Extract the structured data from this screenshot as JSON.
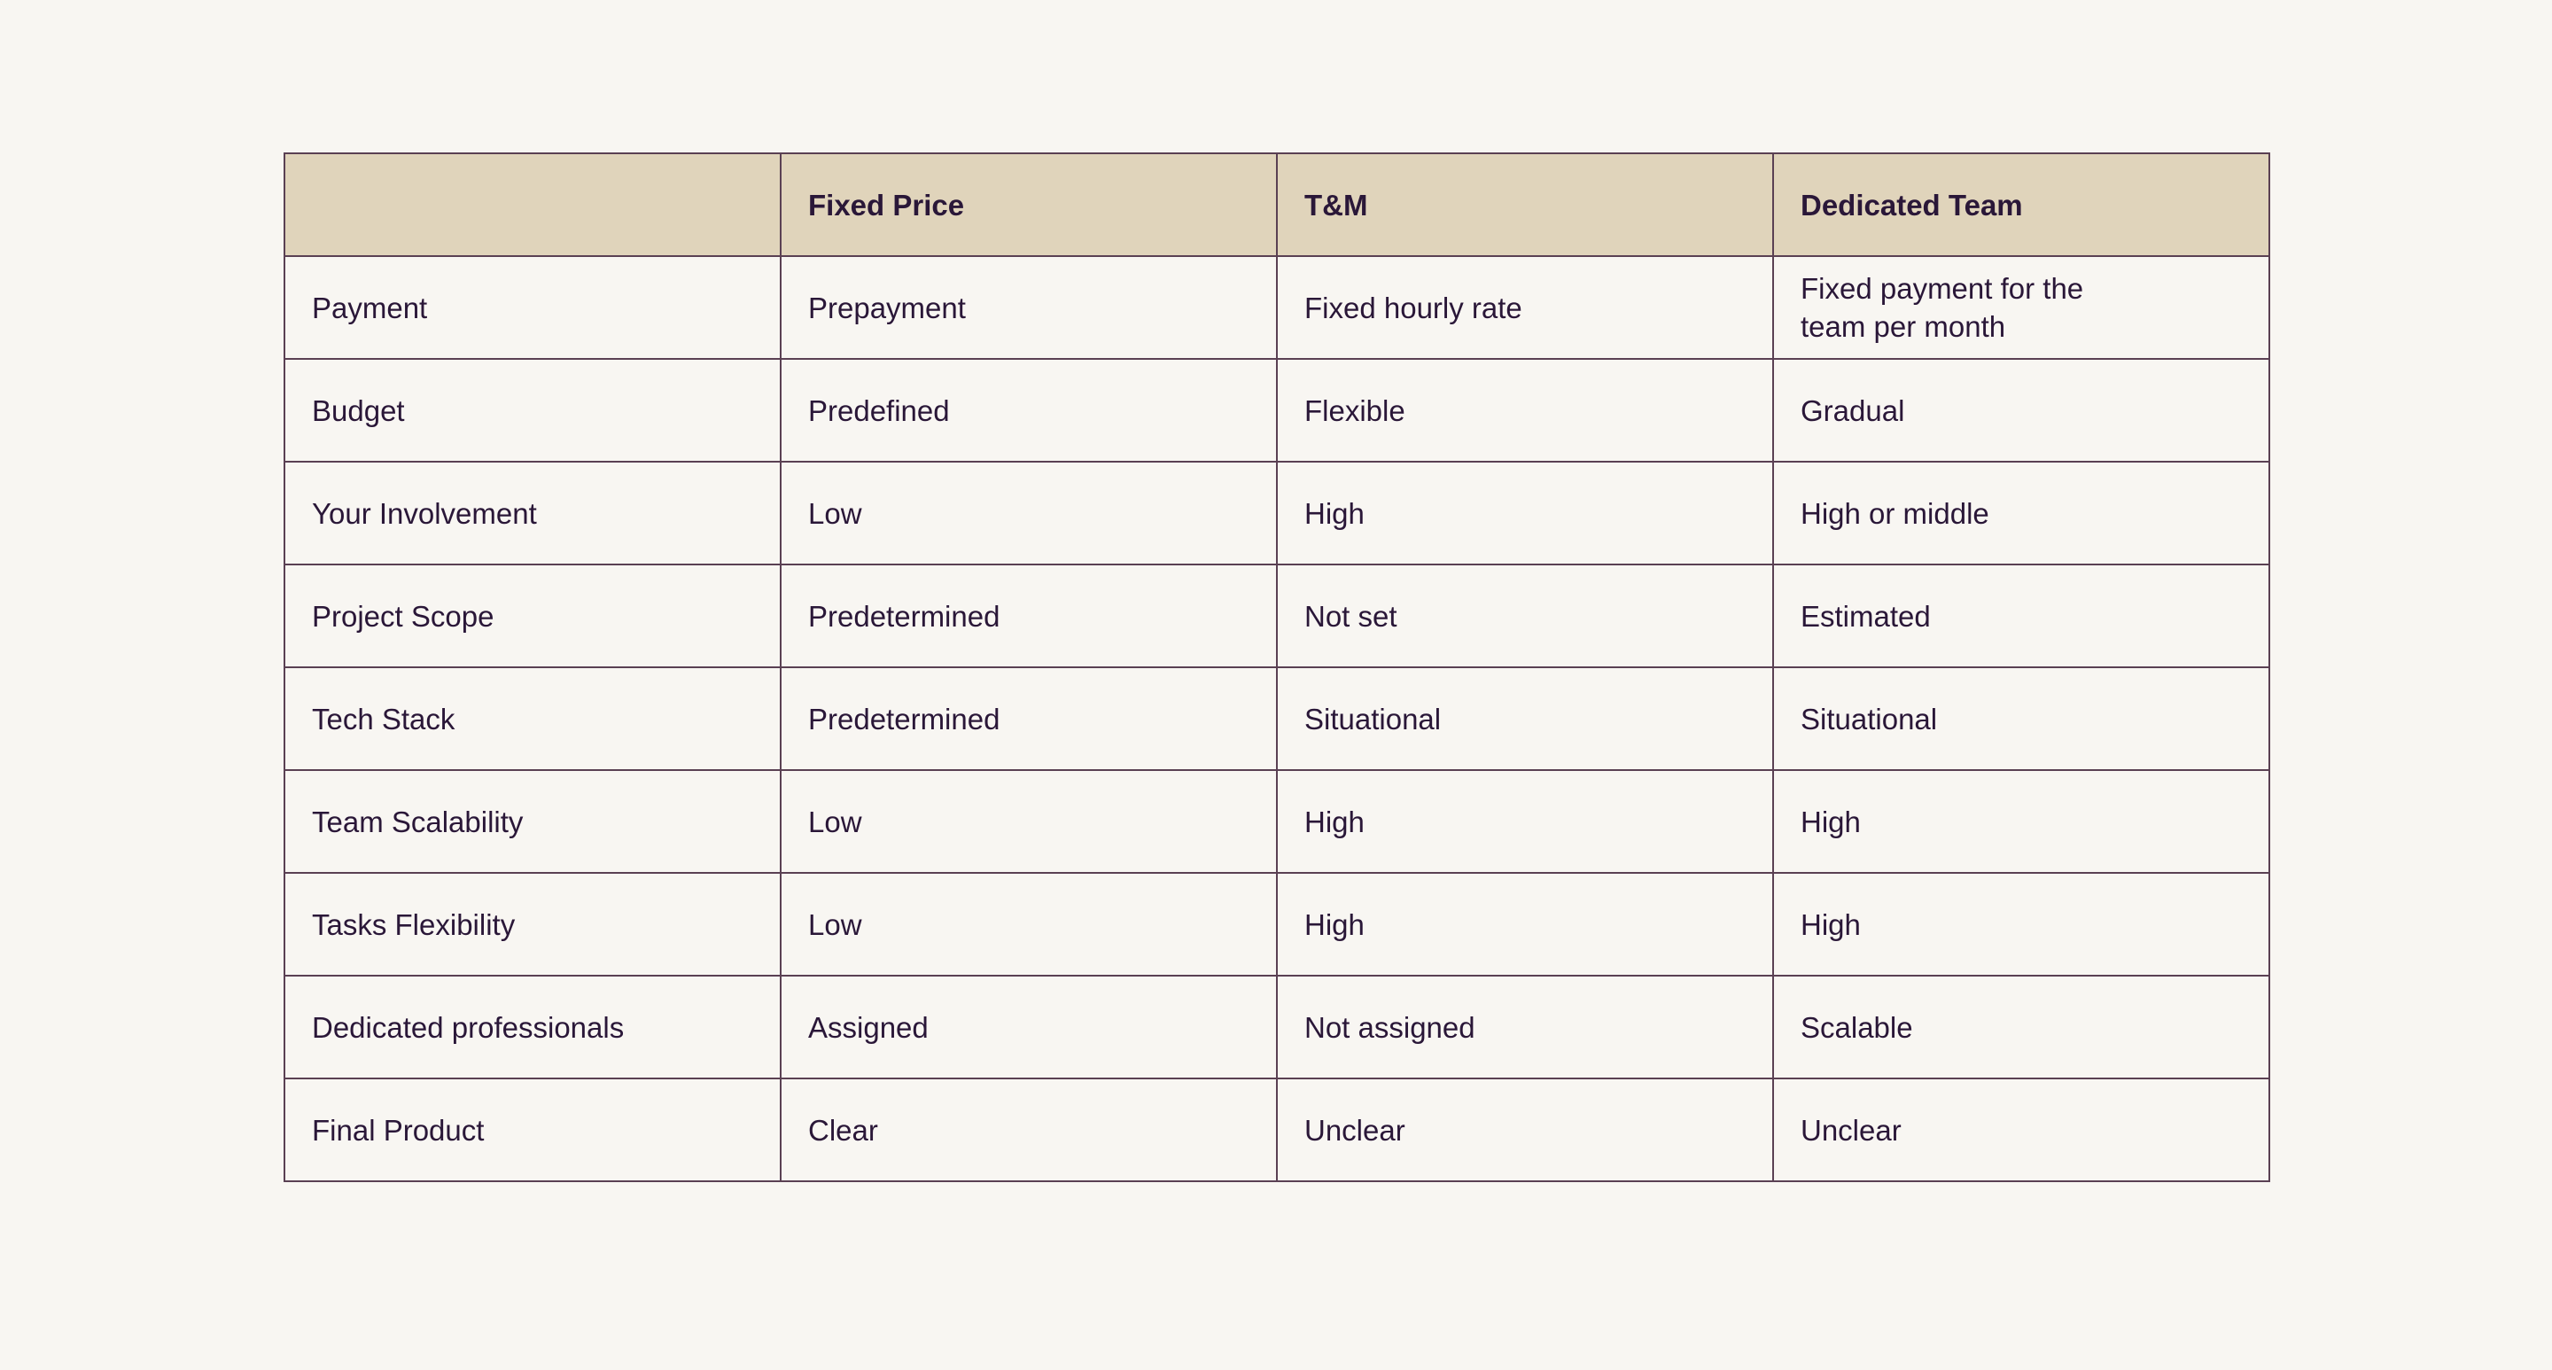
{
  "table": {
    "headers": [
      "",
      "Fixed Price",
      "T&M",
      "Dedicated Team"
    ],
    "rows": [
      [
        "Payment",
        "Prepayment",
        "Fixed hourly rate",
        "Fixed payment for the team per month"
      ],
      [
        "Budget",
        "Predefined",
        "Flexible",
        "Gradual"
      ],
      [
        "Your Involvement",
        "Low",
        "High",
        "High or middle"
      ],
      [
        "Project Scope",
        "Predetermined",
        "Not set",
        "Estimated"
      ],
      [
        "Tech Stack",
        "Predetermined",
        "Situational",
        "Situational"
      ],
      [
        "Team Scalability",
        "Low",
        "High",
        "High"
      ],
      [
        "Tasks Flexibility",
        "Low",
        "High",
        "High"
      ],
      [
        "Dedicated professionals",
        "Assigned",
        "Not assigned",
        "Scalable"
      ],
      [
        "Final Product",
        "Clear",
        "Unclear",
        "Unclear"
      ]
    ]
  },
  "colors": {
    "background": "#f8f6f2",
    "header_background": "#e0d4bb",
    "border": "#5a4053",
    "text": "#2a1738"
  }
}
